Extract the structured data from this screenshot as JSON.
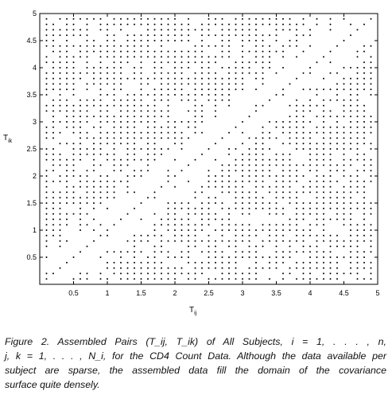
{
  "chart_data": {
    "type": "scatter",
    "xlabel": "T",
    "xlabel_sub": "ij",
    "ylabel": "T",
    "ylabel_sub": "ik",
    "xlim": [
      0,
      5
    ],
    "ylim": [
      0,
      5
    ],
    "xticks": [
      "0.5",
      "1",
      "1.5",
      "2",
      "2.5",
      "3",
      "3.5",
      "4",
      "4.5",
      "5"
    ],
    "yticks": [
      "0.5",
      "1",
      "1.5",
      "2",
      "2.5",
      "3",
      "3.5",
      "4",
      "4.5",
      "5"
    ],
    "grid": false,
    "marker_color": "#000000",
    "points_description_grid_step": 0.1,
    "sparse_diagonal_band": true
  },
  "caption": {
    "line1": "Figure 2. Assembled Pairs (T_ij, T_ik) of All Subjects, i = 1, . . . , n,",
    "line2": "j, k = 1, . . . , N_i, for the CD4 Count Data. Although the data available per",
    "line3": "subject are sparse, the assembled data fill the domain of the covariance",
    "line4": "surface quite densely."
  }
}
